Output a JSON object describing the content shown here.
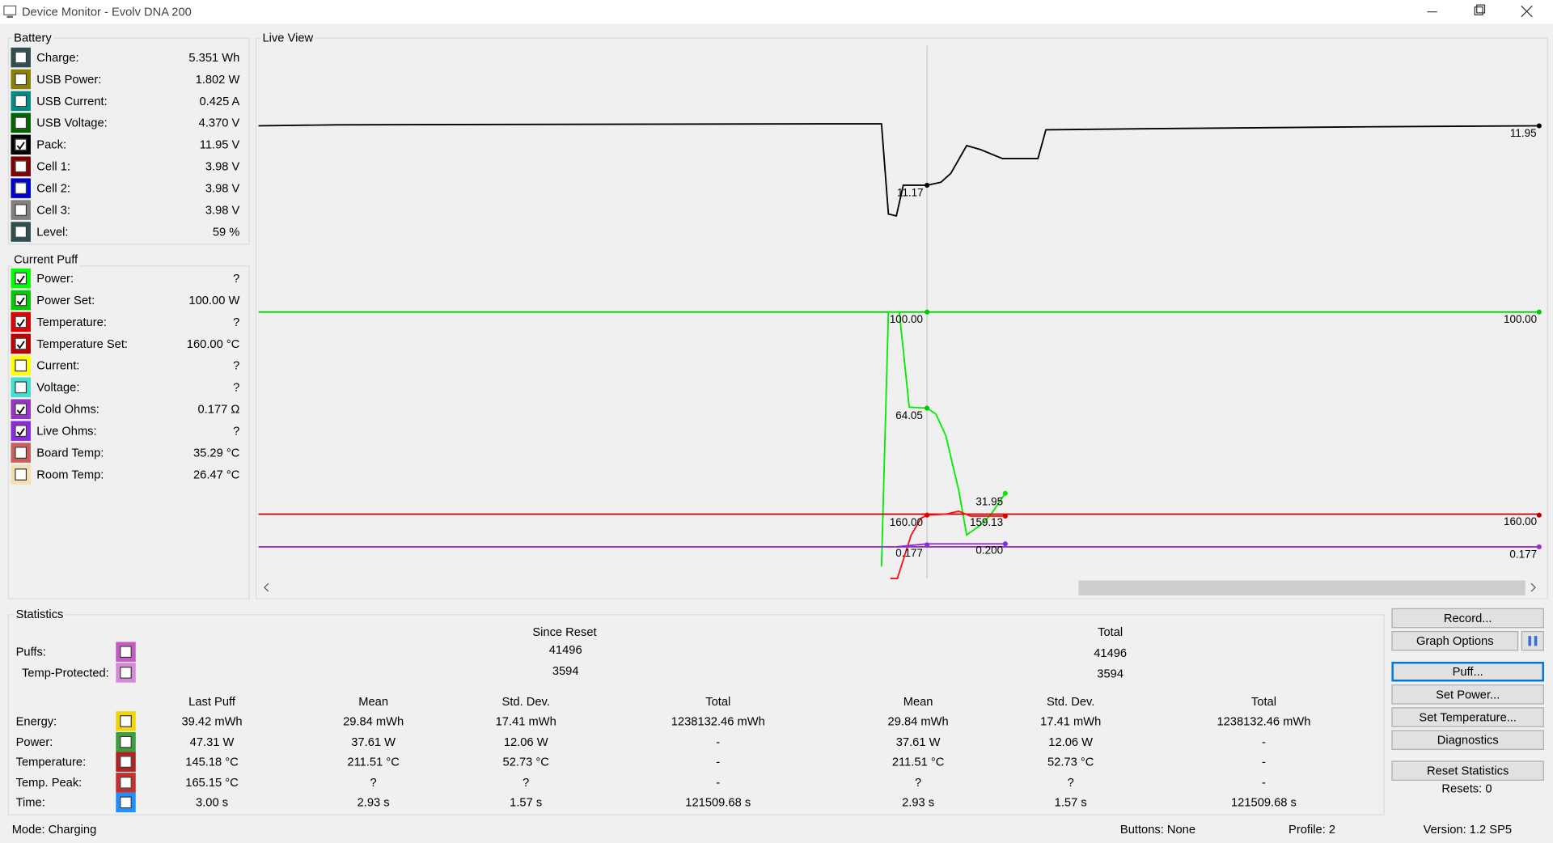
{
  "window": {
    "title": "Device Monitor - Evolv DNA 200"
  },
  "battery": {
    "title": "Battery",
    "rows": [
      {
        "label": "Charge:",
        "value": "5.351 Wh",
        "color": "#2f4f4f",
        "checked": false
      },
      {
        "label": "USB Power:",
        "value": "1.802 W",
        "color": "#8b8000",
        "checked": false
      },
      {
        "label": "USB Current:",
        "value": "0.425 A",
        "color": "#008b8b",
        "checked": false
      },
      {
        "label": "USB Voltage:",
        "value": "4.370 V",
        "color": "#006400",
        "checked": false
      },
      {
        "label": "Pack:",
        "value": "11.95 V",
        "color": "#000000",
        "checked": true
      },
      {
        "label": "Cell 1:",
        "value": "3.98 V",
        "color": "#800000",
        "checked": false
      },
      {
        "label": "Cell 2:",
        "value": "3.98 V",
        "color": "#0000cd",
        "checked": false
      },
      {
        "label": "Cell 3:",
        "value": "3.98 V",
        "color": "#808080",
        "checked": false
      },
      {
        "label": "Level:",
        "value": "59 %",
        "color": "#2f4f4f",
        "checked": false
      }
    ]
  },
  "current_puff": {
    "title": "Current Puff",
    "rows": [
      {
        "label": "Power:",
        "value": "?",
        "color": "#00ff00",
        "checked": true
      },
      {
        "label": "Power Set:",
        "value": "100.00 W",
        "color": "#00cc00",
        "checked": true
      },
      {
        "label": "Temperature:",
        "value": "?",
        "color": "#e00000",
        "checked": true
      },
      {
        "label": "Temperature Set:",
        "value": "160.00 °C",
        "color": "#c00000",
        "checked": true
      },
      {
        "label": "Current:",
        "value": "?",
        "color": "#ffff00",
        "checked": false
      },
      {
        "label": "Voltage:",
        "value": "?",
        "color": "#40e0d0",
        "checked": false
      },
      {
        "label": "Cold Ohms:",
        "value": "0.177 Ω",
        "color": "#9932cc",
        "checked": true
      },
      {
        "label": "Live Ohms:",
        "value": "?",
        "color": "#8a2be2",
        "checked": true
      },
      {
        "label": "Board Temp:",
        "value": "35.29 °C",
        "color": "#cd5c5c",
        "checked": false
      },
      {
        "label": "Room Temp:",
        "value": "26.47 °C",
        "color": "#f5deb3",
        "checked": false
      }
    ]
  },
  "live_view": {
    "title": "Live View",
    "labels": [
      "11.17",
      "11.95",
      "100.00",
      "100.00",
      "64.05",
      "31.95",
      "159.13",
      "160.00",
      "160.00",
      "0.200",
      "0.177",
      "0.177"
    ]
  },
  "statistics": {
    "title": "Statistics",
    "since_reset": "Since Reset",
    "total": "Total",
    "counters": [
      {
        "label": "Puffs:",
        "color": "#c45cc4",
        "since_reset": "41496",
        "total": "41496"
      },
      {
        "label": "Temp-Protected:",
        "color": "#d88ad8",
        "since_reset": "3594",
        "total": "3594"
      }
    ],
    "columns": [
      "Last Puff",
      "Mean",
      "Std. Dev.",
      "Total",
      "Mean",
      "Std. Dev.",
      "Total"
    ],
    "rows": [
      {
        "label": "Energy:",
        "color": "#f2d600",
        "cells": [
          "39.42 mWh",
          "29.84 mWh",
          "17.41 mWh",
          "1238132.46 mWh",
          "29.84 mWh",
          "17.41 mWh",
          "1238132.46 mWh"
        ]
      },
      {
        "label": "Power:",
        "color": "#3c9e3c",
        "cells": [
          "47.31 W",
          "37.61 W",
          "12.06 W",
          "-",
          "37.61 W",
          "12.06 W",
          "-"
        ]
      },
      {
        "label": "Temperature:",
        "color": "#b22222",
        "cells": [
          "145.18 °C",
          "211.51 °C",
          "52.73 °C",
          "-",
          "211.51 °C",
          "52.73 °C",
          "-"
        ]
      },
      {
        "label": "Temp. Peak:",
        "color": "#c83030",
        "cells": [
          "165.15 °C",
          "?",
          "?",
          "-",
          "?",
          "?",
          "-"
        ]
      },
      {
        "label": "Time:",
        "color": "#1e90ff",
        "cells": [
          "3.00 s",
          "2.93 s",
          "1.57 s",
          "121509.68 s",
          "2.93 s",
          "1.57 s",
          "121509.68 s"
        ]
      }
    ]
  },
  "buttons": {
    "record": "Record...",
    "graph_options": "Graph Options",
    "puff": "Puff...",
    "set_power": "Set Power...",
    "set_temperature": "Set Temperature...",
    "diagnostics": "Diagnostics",
    "reset_statistics": "Reset Statistics",
    "resets": "Resets: 0"
  },
  "status_bar": {
    "mode": "Mode: Charging",
    "buttons": "Buttons: None",
    "profile": "Profile: 2",
    "version": "Version: 1.2 SP5"
  }
}
